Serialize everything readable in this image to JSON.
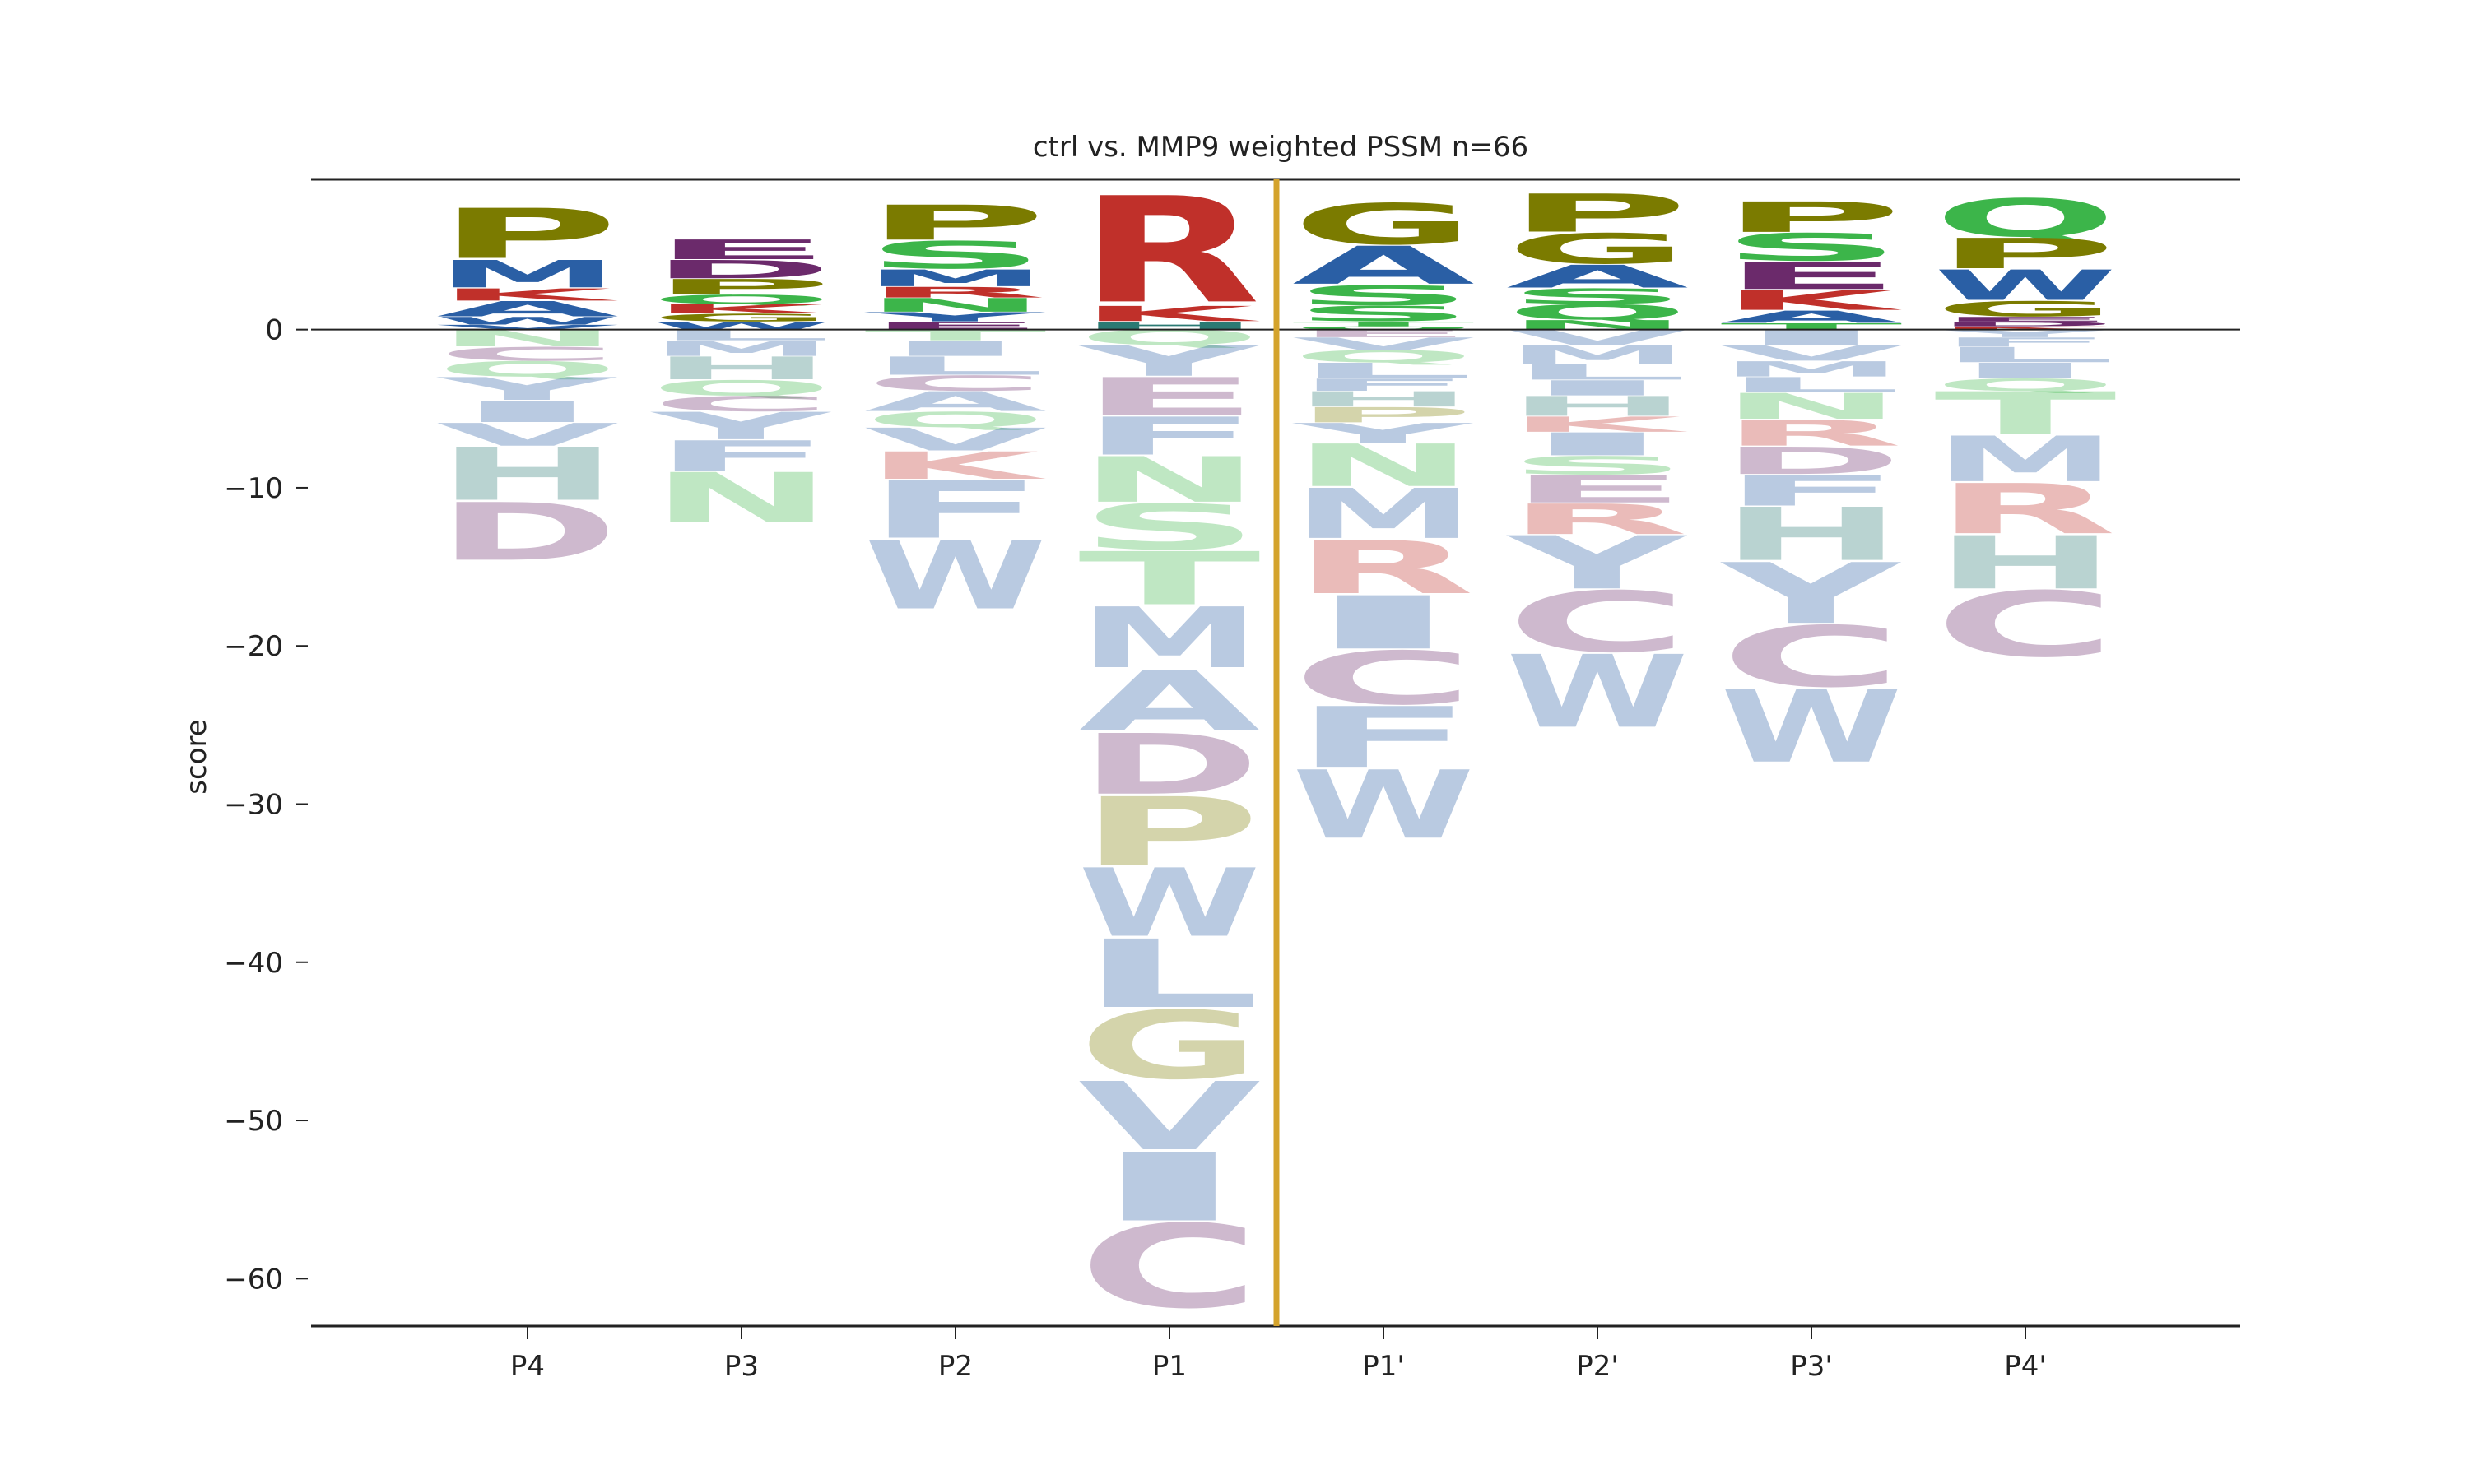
{
  "chart_data": {
    "type": "sequence-logo",
    "title": "ctrl vs. MMP9 weighted PSSM n=66",
    "xlabel": "",
    "ylabel": "score",
    "ylim": [
      -63,
      9.5
    ],
    "yticks": [
      0,
      -10,
      -20,
      -30,
      -40,
      -50,
      -60
    ],
    "ytick_labels": [
      "0",
      "−10",
      "−20",
      "−30",
      "−40",
      "−50",
      "−60"
    ],
    "positions": [
      "P4",
      "P3",
      "P2",
      "P1",
      "P1'",
      "P2'",
      "P3'",
      "P4'"
    ],
    "cleavage_site_between": [
      "P1",
      "P1'"
    ],
    "grid": false,
    "legend": "none",
    "colors": {
      "P": "#7b7b00",
      "G": "#7b7b00",
      "M": "#2a5fa5",
      "A": "#2a5fa5",
      "W": "#2a5fa5",
      "V": "#2a5fa5",
      "L": "#2a5fa5",
      "F": "#2a5fa5",
      "I": "#2a5fa5",
      "Y": "#2a5fa5",
      "K": "#c0302a",
      "R": "#c0302a",
      "H": "#2b7a73",
      "E": "#6b2a6b",
      "D": "#6b2a6b",
      "C": "#6b2a6b",
      "S": "#3cb54a",
      "T": "#3cb54a",
      "N": "#3cb54a",
      "Q": "#3cb54a",
      "cleavage_line": "#d4a32c",
      "axis": "#222222"
    },
    "columns": [
      {
        "position": "P4",
        "positive": [
          {
            "aa": "P",
            "v": 3.3
          },
          {
            "aa": "M",
            "v": 1.8
          },
          {
            "aa": "K",
            "v": 0.8
          },
          {
            "aa": "A",
            "v": 1.0
          },
          {
            "aa": "W",
            "v": 0.5
          },
          {
            "aa": "V",
            "v": 0.3
          }
        ],
        "negative": [
          {
            "aa": "N",
            "v": 1.1
          },
          {
            "aa": "C",
            "v": 0.9
          },
          {
            "aa": "Q",
            "v": 1.0
          },
          {
            "aa": "Y",
            "v": 1.5
          },
          {
            "aa": "I",
            "v": 1.4
          },
          {
            "aa": "V",
            "v": 1.5
          },
          {
            "aa": "H",
            "v": 3.5
          },
          {
            "aa": "D",
            "v": 3.8
          }
        ]
      },
      {
        "position": "P3",
        "positive": [
          {
            "aa": "E",
            "v": 1.3
          },
          {
            "aa": "D",
            "v": 1.2
          },
          {
            "aa": "P",
            "v": 1.0
          },
          {
            "aa": "Q",
            "v": 0.6
          },
          {
            "aa": "K",
            "v": 0.6
          },
          {
            "aa": "G",
            "v": 0.5
          },
          {
            "aa": "W",
            "v": 0.5
          }
        ],
        "negative": [
          {
            "aa": "L",
            "v": 0.7
          },
          {
            "aa": "M",
            "v": 1.0
          },
          {
            "aa": "H",
            "v": 1.5
          },
          {
            "aa": "Q",
            "v": 1.0
          },
          {
            "aa": "C",
            "v": 1.0
          },
          {
            "aa": "Y",
            "v": 1.8
          },
          {
            "aa": "F",
            "v": 2.0
          },
          {
            "aa": "N",
            "v": 3.3
          }
        ]
      },
      {
        "position": "P2",
        "positive": [
          {
            "aa": "P",
            "v": 2.3
          },
          {
            "aa": "S",
            "v": 1.8
          },
          {
            "aa": "M",
            "v": 1.1
          },
          {
            "aa": "R",
            "v": 0.7
          },
          {
            "aa": "N",
            "v": 0.9
          },
          {
            "aa": "Y",
            "v": 0.6
          },
          {
            "aa": "E",
            "v": 0.5
          }
        ],
        "negative": [
          {
            "aa": "T",
            "v": 0.7
          },
          {
            "aa": "I",
            "v": 1.0
          },
          {
            "aa": "L",
            "v": 1.2
          },
          {
            "aa": "C",
            "v": 1.0
          },
          {
            "aa": "A",
            "v": 1.3
          },
          {
            "aa": "Q",
            "v": 1.0
          },
          {
            "aa": "V",
            "v": 1.5
          },
          {
            "aa": "K",
            "v": 1.8
          },
          {
            "aa": "F",
            "v": 3.8
          },
          {
            "aa": "W",
            "v": 4.5
          }
        ]
      },
      {
        "position": "P1",
        "positive": [
          {
            "aa": "R",
            "v": 7.0
          },
          {
            "aa": "K",
            "v": 1.0
          },
          {
            "aa": "H",
            "v": 0.5
          }
        ],
        "negative": [
          {
            "aa": "Q",
            "v": 1.0
          },
          {
            "aa": "Y",
            "v": 2.0
          },
          {
            "aa": "E",
            "v": 2.5
          },
          {
            "aa": "F",
            "v": 2.5
          },
          {
            "aa": "N",
            "v": 3.0
          },
          {
            "aa": "S",
            "v": 3.0
          },
          {
            "aa": "T",
            "v": 3.5
          },
          {
            "aa": "M",
            "v": 4.0
          },
          {
            "aa": "A",
            "v": 4.0
          },
          {
            "aa": "D",
            "v": 4.0
          },
          {
            "aa": "P",
            "v": 4.5
          },
          {
            "aa": "W",
            "v": 4.5
          },
          {
            "aa": "L",
            "v": 4.5
          },
          {
            "aa": "G",
            "v": 4.5
          },
          {
            "aa": "V",
            "v": 4.5
          },
          {
            "aa": "I",
            "v": 4.5
          },
          {
            "aa": "C",
            "v": 5.5
          }
        ]
      },
      {
        "position": "P1'",
        "positive": [
          {
            "aa": "G",
            "v": 2.7
          },
          {
            "aa": "A",
            "v": 2.5
          },
          {
            "aa": "S",
            "v": 1.3
          },
          {
            "aa": "S",
            "v": 1.0
          },
          {
            "aa": "T",
            "v": 0.3
          },
          {
            "aa": "Q",
            "v": 0.2
          }
        ],
        "negative": [
          {
            "aa": "E",
            "v": 0.5
          },
          {
            "aa": "V",
            "v": 0.8
          },
          {
            "aa": "Q",
            "v": 0.8
          },
          {
            "aa": "L",
            "v": 1.0
          },
          {
            "aa": "F",
            "v": 0.8
          },
          {
            "aa": "H",
            "v": 1.0
          },
          {
            "aa": "P",
            "v": 1.0
          },
          {
            "aa": "Y",
            "v": 1.3
          },
          {
            "aa": "N",
            "v": 2.8
          },
          {
            "aa": "M",
            "v": 3.3
          },
          {
            "aa": "R",
            "v": 3.5
          },
          {
            "aa": "I",
            "v": 3.5
          },
          {
            "aa": "C",
            "v": 3.5
          },
          {
            "aa": "F",
            "v": 4.0
          },
          {
            "aa": "W",
            "v": 4.5
          }
        ]
      },
      {
        "position": "P2'",
        "positive": [
          {
            "aa": "P",
            "v": 2.5
          },
          {
            "aa": "G",
            "v": 2.0
          },
          {
            "aa": "A",
            "v": 1.5
          },
          {
            "aa": "S",
            "v": 1.0
          },
          {
            "aa": "Q",
            "v": 1.0
          },
          {
            "aa": "N",
            "v": 0.6
          }
        ],
        "negative": [
          {
            "aa": "V",
            "v": 1.0
          },
          {
            "aa": "M",
            "v": 1.2
          },
          {
            "aa": "L",
            "v": 1.0
          },
          {
            "aa": "I",
            "v": 1.0
          },
          {
            "aa": "H",
            "v": 1.3
          },
          {
            "aa": "K",
            "v": 1.0
          },
          {
            "aa": "I",
            "v": 1.5
          },
          {
            "aa": "S",
            "v": 1.2
          },
          {
            "aa": "E",
            "v": 1.8
          },
          {
            "aa": "R",
            "v": 2.0
          },
          {
            "aa": "Y",
            "v": 3.5
          },
          {
            "aa": "C",
            "v": 4.0
          },
          {
            "aa": "W",
            "v": 4.8
          }
        ]
      },
      {
        "position": "P3'",
        "positive": [
          {
            "aa": "P",
            "v": 2.0
          },
          {
            "aa": "S",
            "v": 1.8
          },
          {
            "aa": "E",
            "v": 1.8
          },
          {
            "aa": "K",
            "v": 1.3
          },
          {
            "aa": "A",
            "v": 0.8
          },
          {
            "aa": "T",
            "v": 0.4
          }
        ],
        "negative": [
          {
            "aa": "I",
            "v": 1.0
          },
          {
            "aa": "V",
            "v": 1.0
          },
          {
            "aa": "M",
            "v": 1.0
          },
          {
            "aa": "L",
            "v": 1.0
          },
          {
            "aa": "N",
            "v": 1.7
          },
          {
            "aa": "R",
            "v": 1.7
          },
          {
            "aa": "D",
            "v": 1.8
          },
          {
            "aa": "F",
            "v": 2.0
          },
          {
            "aa": "H",
            "v": 3.5
          },
          {
            "aa": "Y",
            "v": 4.0
          },
          {
            "aa": "C",
            "v": 4.0
          },
          {
            "aa": "W",
            "v": 4.8
          }
        ]
      },
      {
        "position": "P4'",
        "positive": [
          {
            "aa": "Q",
            "v": 2.5
          },
          {
            "aa": "P",
            "v": 2.0
          },
          {
            "aa": "W",
            "v": 2.0
          },
          {
            "aa": "G",
            "v": 1.0
          },
          {
            "aa": "E",
            "v": 0.3
          },
          {
            "aa": "D",
            "v": 0.3
          },
          {
            "aa": "K",
            "v": 0.2
          }
        ],
        "negative": [
          {
            "aa": "Y",
            "v": 0.5
          },
          {
            "aa": "F",
            "v": 0.6
          },
          {
            "aa": "L",
            "v": 1.0
          },
          {
            "aa": "I",
            "v": 1.0
          },
          {
            "aa": "Q",
            "v": 0.8
          },
          {
            "aa": "T",
            "v": 2.8
          },
          {
            "aa": "M",
            "v": 3.0
          },
          {
            "aa": "R",
            "v": 3.3
          },
          {
            "aa": "H",
            "v": 3.5
          },
          {
            "aa": "C",
            "v": 4.3
          }
        ]
      }
    ]
  }
}
